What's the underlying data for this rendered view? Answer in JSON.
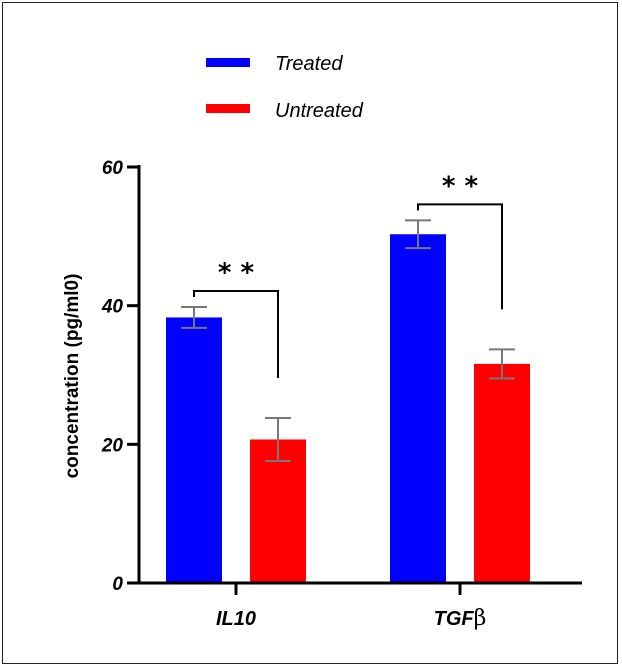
{
  "chart_data": {
    "type": "bar",
    "categories": [
      "IL10",
      "TGF"
    ],
    "category_suffix": [
      "",
      "β"
    ],
    "ylabel": "concentration (pg/ml0)",
    "ylim": [
      0,
      60
    ],
    "yticks": [
      0,
      20,
      40,
      60
    ],
    "ytick_labels": [
      "0",
      "20",
      "40",
      "60"
    ],
    "legend": "top-left",
    "series": [
      {
        "name": "Treated",
        "color": "#0000ff",
        "values": [
          38.3,
          50.3
        ],
        "errors": [
          1.5,
          2.0
        ]
      },
      {
        "name": "Untreated",
        "color": "#ff0000",
        "values": [
          20.7,
          31.6
        ],
        "errors": [
          3.1,
          2.1
        ]
      }
    ],
    "significance": [
      "* *",
      "* *"
    ],
    "error_color": "#777777"
  }
}
